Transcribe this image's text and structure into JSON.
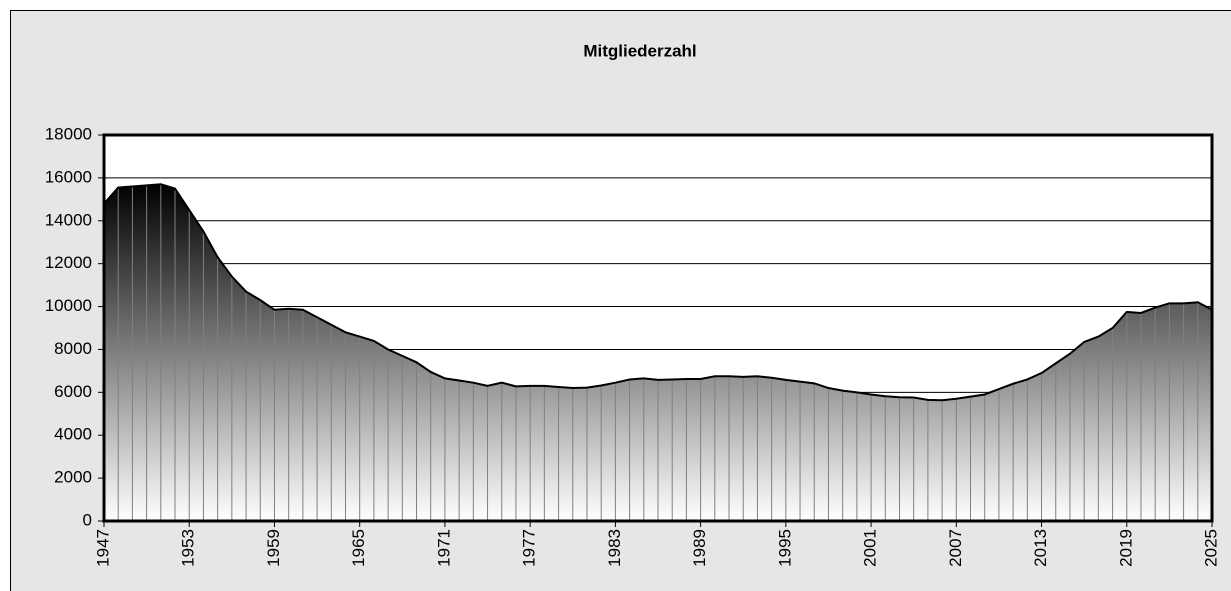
{
  "chart_data": {
    "type": "area",
    "title": "Mitgliederzahl",
    "x": [
      1947,
      1948,
      1949,
      1950,
      1951,
      1952,
      1953,
      1954,
      1955,
      1956,
      1957,
      1958,
      1959,
      1960,
      1961,
      1962,
      1963,
      1964,
      1965,
      1966,
      1967,
      1968,
      1969,
      1970,
      1971,
      1972,
      1973,
      1974,
      1975,
      1976,
      1977,
      1978,
      1979,
      1980,
      1981,
      1982,
      1983,
      1984,
      1985,
      1986,
      1987,
      1988,
      1989,
      1990,
      1991,
      1992,
      1993,
      1994,
      1995,
      1996,
      1997,
      1998,
      1999,
      2000,
      2001,
      2002,
      2003,
      2004,
      2005,
      2006,
      2007,
      2008,
      2009,
      2010,
      2011,
      2012,
      2013,
      2014,
      2015,
      2016,
      2017,
      2018,
      2019,
      2020,
      2021,
      2022,
      2023,
      2024,
      2025
    ],
    "values": [
      14800,
      15550,
      15600,
      15650,
      15700,
      15500,
      14500,
      13500,
      12300,
      11400,
      10700,
      10300,
      9850,
      9900,
      9850,
      9500,
      9150,
      8800,
      8600,
      8400,
      8000,
      7700,
      7400,
      6950,
      6650,
      6550,
      6450,
      6300,
      6450,
      6280,
      6300,
      6300,
      6250,
      6200,
      6220,
      6320,
      6450,
      6600,
      6650,
      6580,
      6600,
      6620,
      6620,
      6750,
      6750,
      6720,
      6750,
      6680,
      6580,
      6500,
      6420,
      6200,
      6080,
      6000,
      5900,
      5820,
      5770,
      5760,
      5650,
      5630,
      5700,
      5800,
      5900,
      6150,
      6400,
      6600,
      6900,
      7350,
      7800,
      8350,
      8600,
      9000,
      9750,
      9700,
      9950,
      10150,
      10150,
      10200,
      9850
    ],
    "xlim": [
      1947,
      2025
    ],
    "xticks": [
      1947,
      1953,
      1959,
      1965,
      1971,
      1977,
      1983,
      1989,
      1995,
      2001,
      2007,
      2013,
      2019,
      2025
    ],
    "ylim": [
      0,
      18000
    ],
    "yticks": [
      0,
      2000,
      4000,
      6000,
      8000,
      10000,
      12000,
      14000,
      16000,
      18000
    ],
    "grid": true,
    "color": "#000000"
  }
}
